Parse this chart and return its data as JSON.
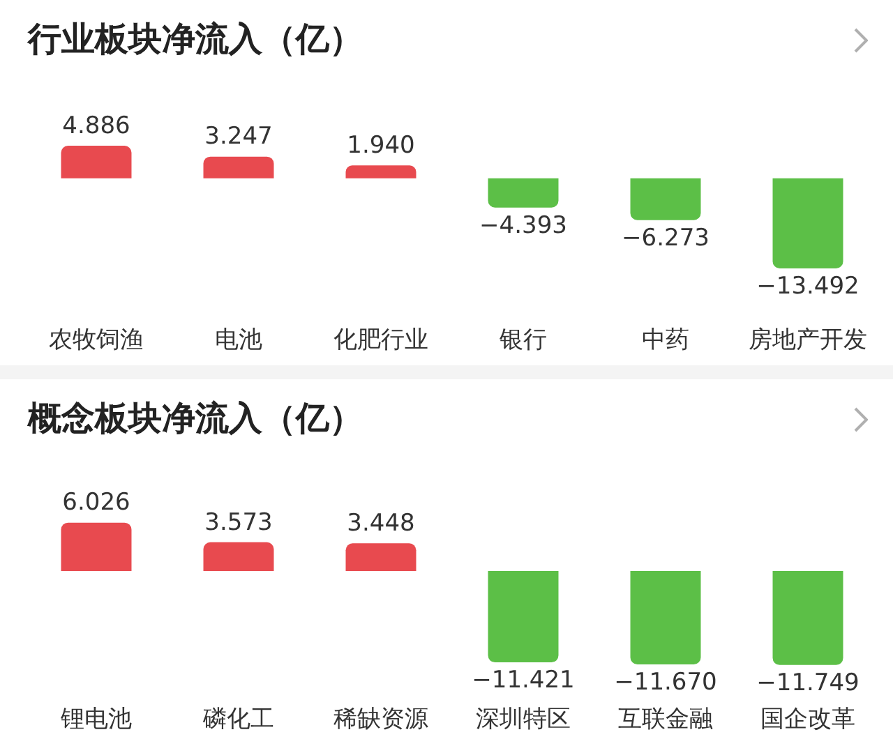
{
  "chart_data": [
    {
      "type": "bar",
      "title": "行业板块净流入（亿）",
      "categories": [
        "农牧饲渔",
        "电池",
        "化肥行业",
        "银行",
        "中药",
        "房地产开发"
      ],
      "values": [
        4.886,
        3.247,
        1.94,
        -4.393,
        -6.273,
        -13.492
      ],
      "colors": [
        "#e84a4f",
        "#e84a4f",
        "#e84a4f",
        "#5cbf47",
        "#5cbf47",
        "#5cbf47"
      ],
      "value_labels": [
        "4.886",
        "3.247",
        "1.940",
        "−4.393",
        "−6.273",
        "−13.492"
      ]
    },
    {
      "type": "bar",
      "title": "概念板块净流入（亿）",
      "categories": [
        "锂电池",
        "磷化工",
        "稀缺资源",
        "深圳特区",
        "互联金融",
        "国企改革"
      ],
      "values": [
        6.026,
        3.573,
        3.448,
        -11.421,
        -11.67,
        -11.749
      ],
      "colors": [
        "#e84a4f",
        "#e84a4f",
        "#e84a4f",
        "#5cbf47",
        "#5cbf47",
        "#5cbf47"
      ],
      "value_labels": [
        "6.026",
        "3.573",
        "3.448",
        "−11.421",
        "−11.670",
        "−11.749"
      ]
    }
  ]
}
